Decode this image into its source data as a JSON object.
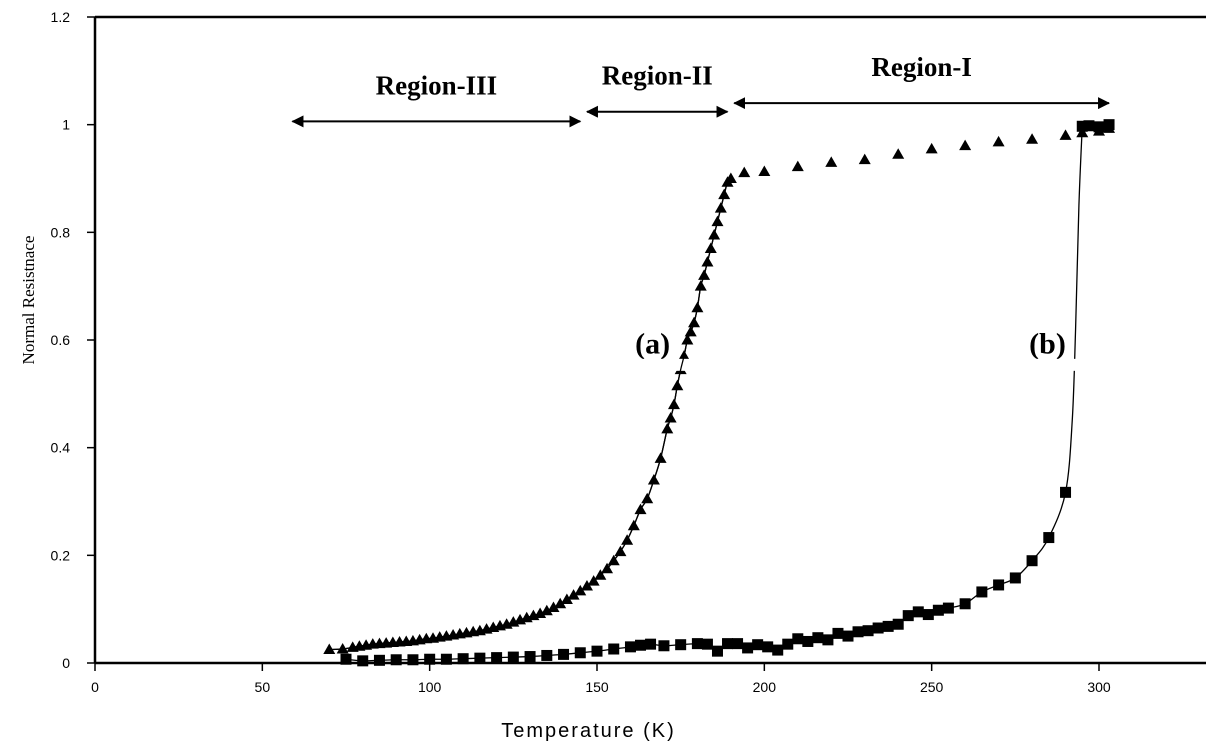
{
  "chart_data": {
    "type": "scatter",
    "title": "",
    "xlabel": "Temperature (K)",
    "ylabel": "Normal Resistnace",
    "xlim": [
      0,
      305
    ],
    "ylim": [
      0,
      1.2
    ],
    "x_ticks": [
      "0",
      "50",
      "100",
      "150",
      "200",
      "250",
      "300"
    ],
    "y_ticks": [
      "0",
      "0.2",
      "0.4",
      "0.6",
      "0.8",
      "1",
      "1.2"
    ],
    "grid": false,
    "legend": "none",
    "regions": [
      {
        "label": "Region-III",
        "x_from": 59,
        "x_to": 145,
        "y": 1.006
      },
      {
        "label": "Region-II",
        "x_from": 147,
        "x_to": 189,
        "y": 1.024
      },
      {
        "label": "Region-I",
        "x_from": 191,
        "x_to": 303,
        "y": 1.04
      }
    ],
    "curve_labels": [
      {
        "text": "(a)",
        "x": 169,
        "y": 0.575
      },
      {
        "text": "(b)",
        "x": 287,
        "y": 0.575
      }
    ],
    "series": [
      {
        "marker": "triangle",
        "color": "#000000",
        "x": [
          70,
          74,
          77,
          79,
          81,
          83,
          85,
          87,
          89,
          91,
          93,
          95,
          97,
          99,
          101,
          103,
          105,
          107,
          109,
          111,
          113,
          115,
          117,
          119,
          121,
          123,
          125,
          127,
          129,
          131,
          133,
          135,
          137,
          139,
          141,
          143,
          145,
          147,
          149,
          151,
          153,
          155,
          157,
          159,
          161,
          163,
          165,
          167,
          169,
          171,
          172,
          173,
          174,
          175,
          176,
          177,
          178,
          179,
          180,
          181,
          182,
          183,
          184,
          185,
          186,
          187,
          188,
          189,
          190,
          194,
          200,
          210,
          220,
          230,
          240,
          250,
          260,
          270,
          280,
          290,
          295,
          300,
          303
        ],
        "y": [
          0.025,
          0.026,
          0.029,
          0.031,
          0.033,
          0.035,
          0.036,
          0.037,
          0.038,
          0.039,
          0.04,
          0.041,
          0.043,
          0.045,
          0.046,
          0.048,
          0.05,
          0.052,
          0.054,
          0.056,
          0.058,
          0.06,
          0.063,
          0.066,
          0.069,
          0.072,
          0.076,
          0.08,
          0.084,
          0.088,
          0.092,
          0.097,
          0.103,
          0.11,
          0.118,
          0.126,
          0.134,
          0.143,
          0.152,
          0.163,
          0.175,
          0.19,
          0.207,
          0.228,
          0.255,
          0.285,
          0.305,
          0.34,
          0.38,
          0.435,
          0.455,
          0.48,
          0.515,
          0.545,
          0.57,
          0.6,
          0.615,
          0.632,
          0.66,
          0.7,
          0.72,
          0.745,
          0.77,
          0.795,
          0.82,
          0.845,
          0.87,
          0.893,
          0.9,
          0.911,
          0.913,
          0.922,
          0.93,
          0.935,
          0.945,
          0.955,
          0.961,
          0.968,
          0.973,
          0.98,
          0.985,
          0.988,
          0.993
        ]
      },
      {
        "marker": "square",
        "color": "#000000",
        "x": [
          75,
          80,
          85,
          90,
          95,
          100,
          105,
          110,
          115,
          120,
          125,
          130,
          135,
          140,
          145,
          150,
          155,
          160,
          163,
          166,
          170,
          175,
          180,
          183,
          186,
          189,
          192,
          195,
          198,
          201,
          204,
          207,
          210,
          213,
          216,
          219,
          222,
          225,
          228,
          231,
          234,
          237,
          240,
          243,
          246,
          249,
          252,
          255,
          260,
          265,
          270,
          275,
          280,
          285,
          290,
          292,
          293,
          294,
          295,
          297,
          300,
          303
        ],
        "y": [
          0.007,
          0.004,
          0.005,
          0.006,
          0.006,
          0.007,
          0.007,
          0.008,
          0.009,
          0.01,
          0.011,
          0.012,
          0.014,
          0.016,
          0.019,
          0.022,
          0.026,
          0.03,
          0.033,
          0.035,
          0.032,
          0.034,
          0.036,
          0.035,
          0.022,
          0.036,
          0.036,
          0.028,
          0.034,
          0.03,
          0.024,
          0.035,
          0.045,
          0.04,
          0.047,
          0.043,
          0.055,
          0.05,
          0.058,
          0.06,
          0.065,
          0.068,
          0.072,
          0.088,
          0.095,
          0.09,
          0.098,
          0.102,
          0.11,
          0.132,
          0.145,
          0.158,
          0.19,
          0.233,
          0.317,
          0.45,
          0.62,
          0.85,
          0.997,
          0.998,
          0.996,
          1.0
        ]
      }
    ]
  }
}
